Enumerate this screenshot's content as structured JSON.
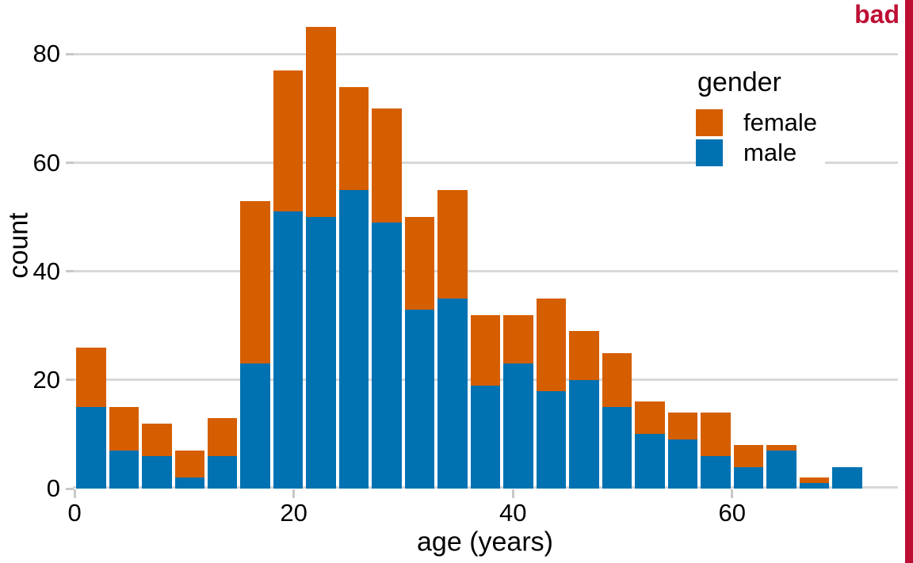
{
  "annotation": {
    "label": "bad",
    "color": "#be0e34"
  },
  "chart_data": {
    "type": "bar",
    "subtype": "stacked-histogram",
    "title": "",
    "xlabel": "age (years)",
    "ylabel": "count",
    "bin_width": 3,
    "bin_starts": [
      0,
      3,
      6,
      9,
      12,
      15,
      18,
      21,
      24,
      27,
      30,
      33,
      36,
      39,
      42,
      45,
      48,
      51,
      54,
      57,
      60,
      63,
      66,
      69
    ],
    "series": [
      {
        "name": "male",
        "color": "#0072b2",
        "values": [
          15,
          7,
          6,
          2,
          6,
          23,
          51,
          50,
          55,
          49,
          33,
          35,
          19,
          23,
          18,
          20,
          15,
          10,
          9,
          6,
          4,
          7,
          1,
          4
        ]
      },
      {
        "name": "female",
        "color": "#d55e00",
        "values": [
          11,
          8,
          6,
          5,
          7,
          30,
          26,
          35,
          19,
          21,
          17,
          20,
          13,
          9,
          17,
          9,
          10,
          6,
          5,
          8,
          4,
          1,
          1,
          0
        ]
      }
    ],
    "totals": [
      26,
      15,
      12,
      7,
      13,
      53,
      77,
      85,
      74,
      70,
      50,
      55,
      32,
      32,
      35,
      29,
      25,
      16,
      14,
      14,
      8,
      8,
      2,
      4
    ],
    "legend": {
      "title": "gender",
      "position": "top-right",
      "entries": [
        {
          "label": "female",
          "color": "#d55e00"
        },
        {
          "label": "male",
          "color": "#0072b2"
        }
      ]
    },
    "x_ticks": [
      0,
      20,
      40,
      60
    ],
    "y_ticks": [
      0,
      20,
      40,
      60,
      80
    ],
    "x_range": [
      -0.15,
      75.13
    ],
    "y_range": [
      0,
      85.9
    ],
    "grid": "horizontal",
    "grid_color": "#d8d8d8"
  }
}
